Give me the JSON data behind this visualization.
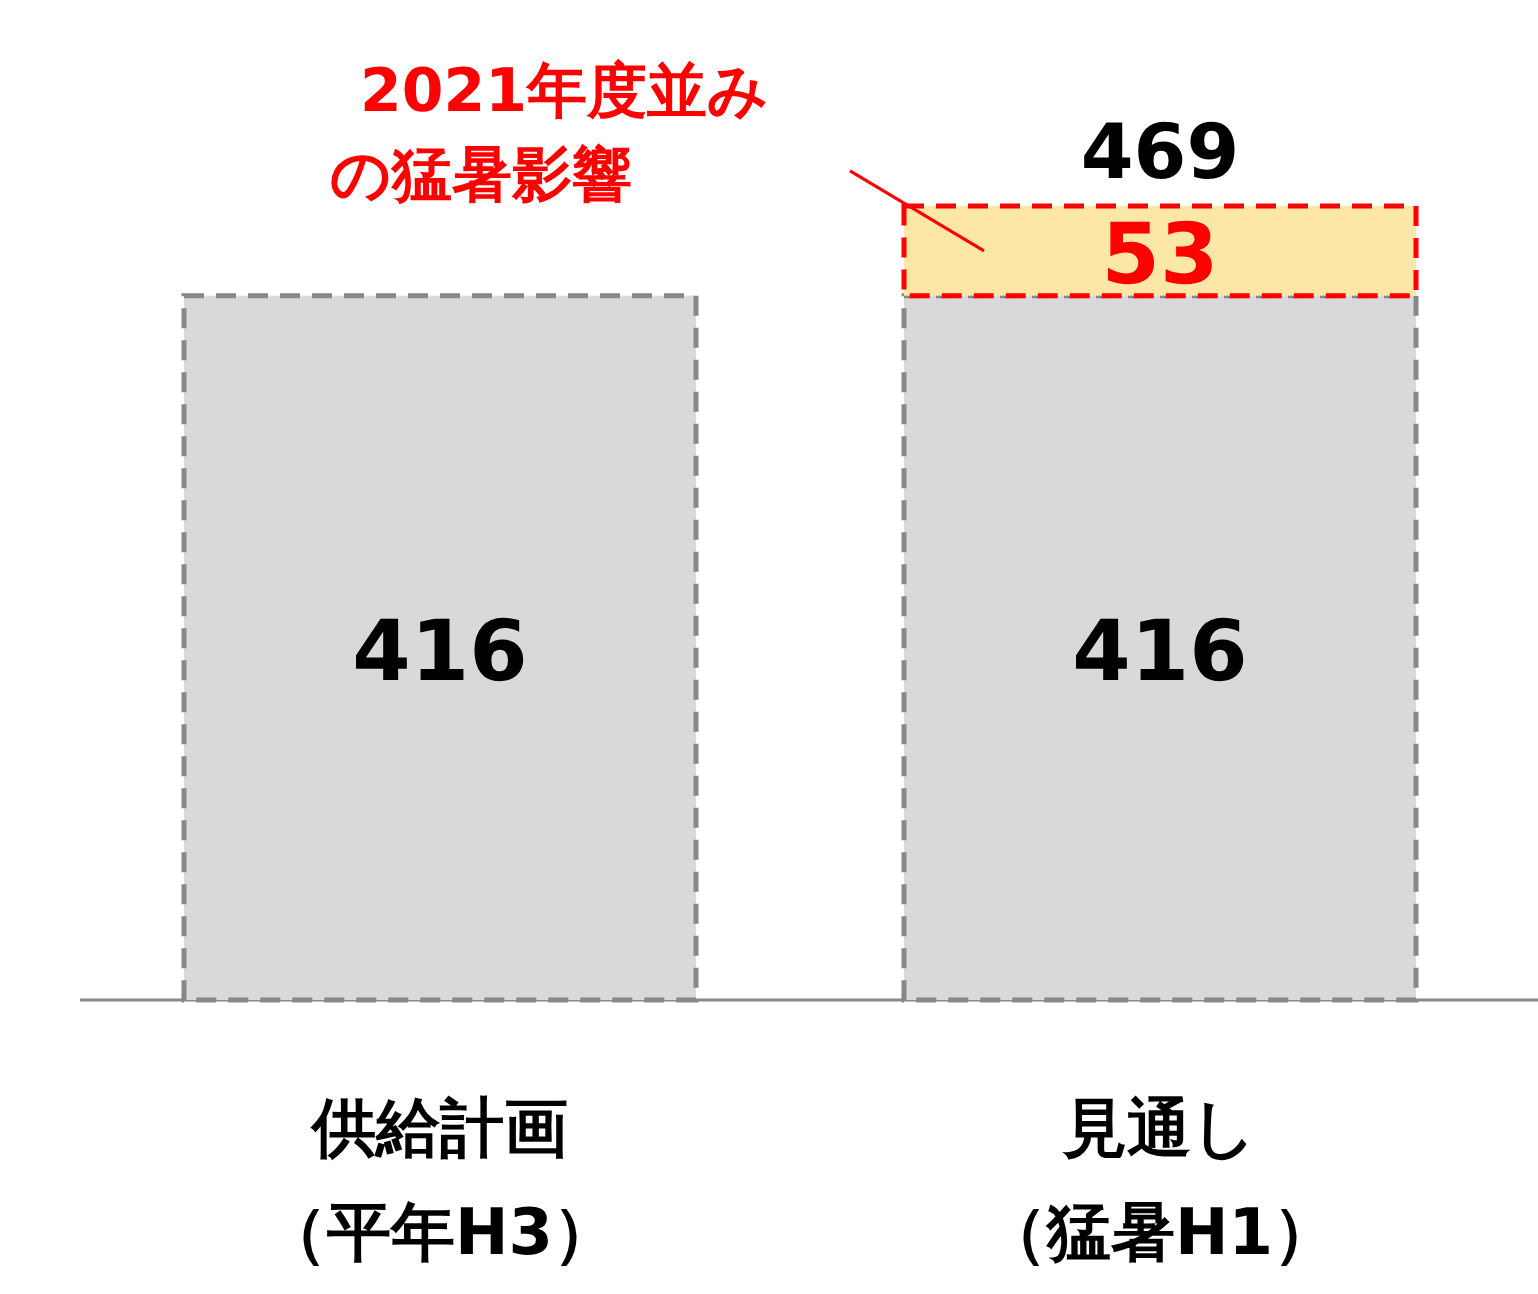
{
  "chart_data": {
    "type": "bar",
    "stacked": true,
    "categories": [
      "供給計画（平年H3）",
      "見通し（猛暑H1）"
    ],
    "series": [
      {
        "color": "#d9d9d9",
        "values": [
          416,
          416
        ]
      },
      {
        "color": "#fde7a6",
        "values": [
          null,
          53
        ]
      }
    ],
    "data_labels": true,
    "totals": [
      null,
      "469"
    ],
    "line_style": "dashed",
    "annotations": [
      "2021年度並みの猛暑影響"
    ]
  }
}
